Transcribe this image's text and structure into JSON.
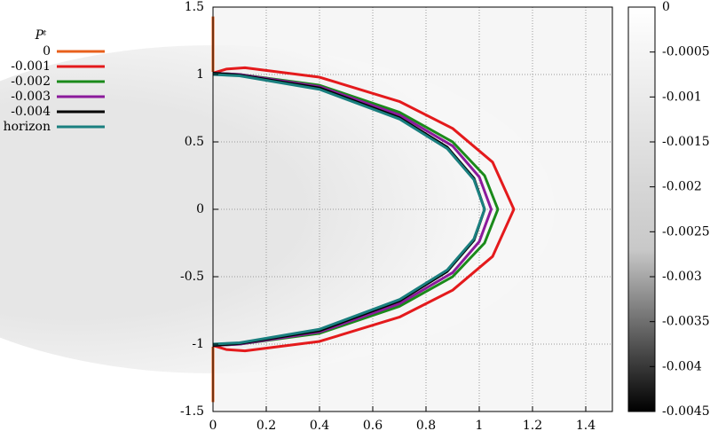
{
  "chart_data": {
    "type": "line",
    "legend_title": "Pᵗ",
    "xlim": [
      0,
      1.5
    ],
    "ylim": [
      -1.5,
      1.5
    ],
    "xticks": [
      0,
      0.2,
      0.4,
      0.6,
      0.8,
      1,
      1.2,
      1.4
    ],
    "yticks": [
      -1.5,
      -1,
      -0.5,
      0,
      0.5,
      1,
      1.5
    ],
    "grid": true,
    "legend": "left",
    "colorbar": {
      "lim": [
        -0.0045,
        0
      ],
      "ticks": [
        0,
        -0.0005,
        -0.001,
        -0.0015,
        -0.002,
        -0.0025,
        -0.003,
        -0.0035,
        -0.004,
        -0.0045
      ]
    },
    "series": [
      {
        "name": "0",
        "color": "#e8601c",
        "x": [
          0,
          0,
          null,
          0,
          0
        ],
        "y": [
          1.02,
          1.43,
          null,
          -1.02,
          -1.43
        ]
      },
      {
        "name": "-0.001",
        "color": "#e41a1c",
        "x": [
          0,
          0.05,
          0.12,
          0.4,
          0.7,
          0.9,
          1.05,
          1.13,
          1.05,
          0.9,
          0.7,
          0.4,
          0.12,
          0.05,
          0
        ],
        "y": [
          1.01,
          1.04,
          1.05,
          0.98,
          0.8,
          0.6,
          0.35,
          0,
          -0.35,
          -0.6,
          -0.8,
          -0.98,
          -1.05,
          -1.04,
          -1.01
        ]
      },
      {
        "name": "-0.002",
        "color": "#1a8a1a",
        "x": [
          0,
          0.1,
          0.4,
          0.7,
          0.9,
          1.02,
          1.07,
          1.02,
          0.9,
          0.7,
          0.4,
          0.1,
          0
        ],
        "y": [
          1.01,
          1.0,
          0.92,
          0.72,
          0.5,
          0.25,
          0,
          -0.25,
          -0.5,
          -0.72,
          -0.92,
          -1.0,
          -1.01
        ]
      },
      {
        "name": "-0.003",
        "color": "#8b1a9b",
        "x": [
          0,
          0.1,
          0.4,
          0.7,
          0.9,
          1.0,
          1.045,
          1.0,
          0.9,
          0.7,
          0.4,
          0.1,
          0
        ],
        "y": [
          1.01,
          1.0,
          0.91,
          0.7,
          0.47,
          0.24,
          0,
          -0.24,
          -0.47,
          -0.7,
          -0.91,
          -1.0,
          -1.01
        ]
      },
      {
        "name": "-0.004",
        "color": "#000000",
        "x": [
          0,
          0.1,
          0.4,
          0.7,
          0.88,
          0.98,
          1.02,
          0.98,
          0.88,
          0.7,
          0.4,
          0.1,
          0
        ],
        "y": [
          1.01,
          0.995,
          0.9,
          0.68,
          0.46,
          0.23,
          0,
          -0.23,
          -0.46,
          -0.68,
          -0.9,
          -0.995,
          -1.01
        ]
      },
      {
        "name": "horizon",
        "color": "#1a7f7f",
        "x": [
          0,
          0.1,
          0.4,
          0.7,
          0.88,
          0.98,
          1.02,
          0.98,
          0.88,
          0.7,
          0.4,
          0.1,
          0
        ],
        "y": [
          1.0,
          0.99,
          0.89,
          0.67,
          0.45,
          0.22,
          0,
          -0.22,
          -0.45,
          -0.67,
          -0.89,
          -0.99,
          -1.0
        ]
      }
    ]
  }
}
